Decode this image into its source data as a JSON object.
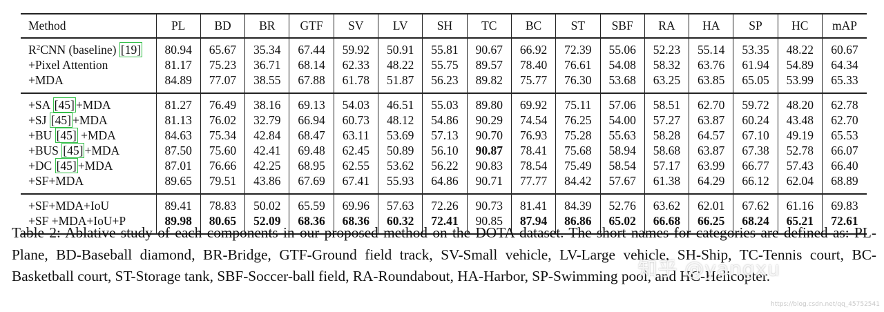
{
  "table": {
    "headers": [
      "Method",
      "PL",
      "BD",
      "BR",
      "GTF",
      "SV",
      "LV",
      "SH",
      "TC",
      "BC",
      "ST",
      "SBF",
      "RA",
      "HA",
      "SP",
      "HC",
      "mAP"
    ],
    "groups": [
      [
        {
          "method_pre": "R",
          "method_sup": "2",
          "method_mid": "CNN (baseline) ",
          "method_cite": "[19]",
          "method_post": "",
          "values": [
            "80.94",
            "65.67",
            "35.34",
            "67.44",
            "59.92",
            "50.91",
            "55.81",
            "90.67",
            "66.92",
            "72.39",
            "55.06",
            "52.23",
            "55.14",
            "53.35",
            "48.22",
            "60.67"
          ],
          "bold": []
        },
        {
          "method_pre": "+Pixel Attention",
          "method_sup": "",
          "method_mid": "",
          "method_cite": "",
          "method_post": "",
          "values": [
            "81.17",
            "75.23",
            "36.71",
            "68.14",
            "62.33",
            "48.22",
            "55.75",
            "89.57",
            "78.40",
            "76.61",
            "54.08",
            "58.32",
            "63.76",
            "61.94",
            "54.89",
            "64.34"
          ],
          "bold": []
        },
        {
          "method_pre": "+MDA",
          "method_sup": "",
          "method_mid": "",
          "method_cite": "",
          "method_post": "",
          "values": [
            "84.89",
            "77.07",
            "38.55",
            "67.88",
            "61.78",
            "51.87",
            "56.23",
            "89.82",
            "75.77",
            "76.30",
            "53.68",
            "63.25",
            "63.85",
            "65.05",
            "53.99",
            "65.33"
          ],
          "bold": []
        }
      ],
      [
        {
          "method_pre": "+SA ",
          "method_sup": "",
          "method_mid": "",
          "method_cite": "[45]",
          "method_post": "+MDA",
          "values": [
            "81.27",
            "76.49",
            "38.16",
            "69.13",
            "54.03",
            "46.51",
            "55.03",
            "89.80",
            "69.92",
            "75.11",
            "57.06",
            "58.51",
            "62.70",
            "59.72",
            "48.20",
            "62.78"
          ],
          "bold": []
        },
        {
          "method_pre": "+SJ ",
          "method_sup": "",
          "method_mid": "",
          "method_cite": "[45]",
          "method_post": "+MDA",
          "values": [
            "81.13",
            "76.02",
            "32.79",
            "66.94",
            "60.73",
            "48.12",
            "54.86",
            "90.29",
            "74.54",
            "76.25",
            "54.00",
            "57.27",
            "63.87",
            "60.24",
            "43.48",
            "62.70"
          ],
          "bold": []
        },
        {
          "method_pre": "+BU ",
          "method_sup": "",
          "method_mid": "",
          "method_cite": "[45]",
          "method_post": " +MDA",
          "values": [
            "84.63",
            "75.34",
            "42.84",
            "68.47",
            "63.11",
            "53.69",
            "57.13",
            "90.70",
            "76.93",
            "75.28",
            "55.63",
            "58.28",
            "64.57",
            "67.10",
            "49.19",
            "65.53"
          ],
          "bold": []
        },
        {
          "method_pre": "+BUS ",
          "method_sup": "",
          "method_mid": "",
          "method_cite": "[45]",
          "method_post": "+MDA",
          "values": [
            "87.50",
            "75.60",
            "42.41",
            "69.48",
            "62.45",
            "50.89",
            "56.10",
            "90.87",
            "78.41",
            "75.68",
            "58.94",
            "58.68",
            "63.87",
            "67.38",
            "52.78",
            "66.07"
          ],
          "bold": [
            7
          ]
        },
        {
          "method_pre": "+DC ",
          "method_sup": "",
          "method_mid": "",
          "method_cite": "[45]",
          "method_post": "+MDA",
          "values": [
            "87.01",
            "76.66",
            "42.25",
            "68.95",
            "62.55",
            "53.62",
            "56.22",
            "90.83",
            "78.54",
            "75.49",
            "58.54",
            "57.17",
            "63.99",
            "66.77",
            "57.43",
            "66.40"
          ],
          "bold": []
        },
        {
          "method_pre": "+SF+MDA",
          "method_sup": "",
          "method_mid": "",
          "method_cite": "",
          "method_post": "",
          "values": [
            "89.65",
            "79.51",
            "43.86",
            "67.69",
            "67.41",
            "55.93",
            "64.86",
            "90.71",
            "77.77",
            "84.42",
            "57.67",
            "61.38",
            "64.29",
            "66.12",
            "62.04",
            "68.89"
          ],
          "bold": []
        }
      ],
      [
        {
          "method_pre": "+SF+MDA+IoU",
          "method_sup": "",
          "method_mid": "",
          "method_cite": "",
          "method_post": "",
          "values": [
            "89.41",
            "78.83",
            "50.02",
            "65.59",
            "69.96",
            "57.63",
            "72.26",
            "90.73",
            "81.41",
            "84.39",
            "52.76",
            "63.62",
            "62.01",
            "67.62",
            "61.16",
            "69.83"
          ],
          "bold": []
        },
        {
          "method_pre": "+SF +MDA+IoU+P",
          "method_sup": "",
          "method_mid": "",
          "method_cite": "",
          "method_post": "",
          "values": [
            "89.98",
            "80.65",
            "52.09",
            "68.36",
            "68.36",
            "60.32",
            "72.41",
            "90.85",
            "87.94",
            "86.86",
            "65.02",
            "66.68",
            "66.25",
            "68.24",
            "65.21",
            "72.61"
          ],
          "bold": [
            0,
            1,
            2,
            3,
            4,
            5,
            6,
            8,
            9,
            10,
            11,
            12,
            13,
            14,
            15
          ]
        }
      ]
    ]
  },
  "caption": "Table 2: Ablative study of each components in our proposed method on the DOTA dataset. The short names for categories are defined as: PL-Plane, BD-Baseball diamond, BR-Bridge, GTF-Ground field track, SV-Small vehicle, LV-Large vehicle, SH-Ship, TC-Tennis court, BC-Basketball court, ST-Storage tank, SBF-Soccer-ball field, RA-Roundabout, HA-Harbor, SP-Swimming pool, and HC-Helicopter.",
  "watermark": "知乎 @yangxu",
  "watermark_url": "https://blog.csdn.net/qq_45752541"
}
